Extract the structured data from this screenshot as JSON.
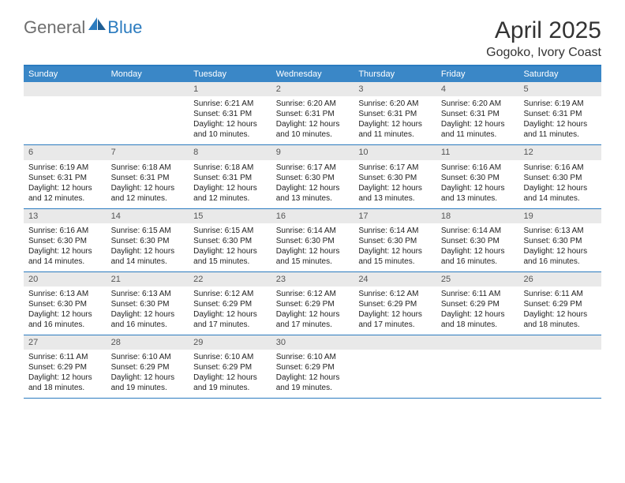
{
  "brand": {
    "general": "General",
    "blue": "Blue"
  },
  "title": {
    "month": "April 2025",
    "location": "Gogoko, Ivory Coast"
  },
  "colors": {
    "accent": "#3a87c7",
    "rule": "#2b7bbf",
    "dayNumBg": "#e9e9e9",
    "headerText": "#ffffff",
    "body": "#222222"
  },
  "dayHeaders": [
    "Sunday",
    "Monday",
    "Tuesday",
    "Wednesday",
    "Thursday",
    "Friday",
    "Saturday"
  ],
  "weeks": [
    [
      {
        "empty": true
      },
      {
        "empty": true
      },
      {
        "num": "1",
        "sunrise": "Sunrise: 6:21 AM",
        "sunset": "Sunset: 6:31 PM",
        "daylight": "Daylight: 12 hours and 10 minutes."
      },
      {
        "num": "2",
        "sunrise": "Sunrise: 6:20 AM",
        "sunset": "Sunset: 6:31 PM",
        "daylight": "Daylight: 12 hours and 10 minutes."
      },
      {
        "num": "3",
        "sunrise": "Sunrise: 6:20 AM",
        "sunset": "Sunset: 6:31 PM",
        "daylight": "Daylight: 12 hours and 11 minutes."
      },
      {
        "num": "4",
        "sunrise": "Sunrise: 6:20 AM",
        "sunset": "Sunset: 6:31 PM",
        "daylight": "Daylight: 12 hours and 11 minutes."
      },
      {
        "num": "5",
        "sunrise": "Sunrise: 6:19 AM",
        "sunset": "Sunset: 6:31 PM",
        "daylight": "Daylight: 12 hours and 11 minutes."
      }
    ],
    [
      {
        "num": "6",
        "sunrise": "Sunrise: 6:19 AM",
        "sunset": "Sunset: 6:31 PM",
        "daylight": "Daylight: 12 hours and 12 minutes."
      },
      {
        "num": "7",
        "sunrise": "Sunrise: 6:18 AM",
        "sunset": "Sunset: 6:31 PM",
        "daylight": "Daylight: 12 hours and 12 minutes."
      },
      {
        "num": "8",
        "sunrise": "Sunrise: 6:18 AM",
        "sunset": "Sunset: 6:31 PM",
        "daylight": "Daylight: 12 hours and 12 minutes."
      },
      {
        "num": "9",
        "sunrise": "Sunrise: 6:17 AM",
        "sunset": "Sunset: 6:30 PM",
        "daylight": "Daylight: 12 hours and 13 minutes."
      },
      {
        "num": "10",
        "sunrise": "Sunrise: 6:17 AM",
        "sunset": "Sunset: 6:30 PM",
        "daylight": "Daylight: 12 hours and 13 minutes."
      },
      {
        "num": "11",
        "sunrise": "Sunrise: 6:16 AM",
        "sunset": "Sunset: 6:30 PM",
        "daylight": "Daylight: 12 hours and 13 minutes."
      },
      {
        "num": "12",
        "sunrise": "Sunrise: 6:16 AM",
        "sunset": "Sunset: 6:30 PM",
        "daylight": "Daylight: 12 hours and 14 minutes."
      }
    ],
    [
      {
        "num": "13",
        "sunrise": "Sunrise: 6:16 AM",
        "sunset": "Sunset: 6:30 PM",
        "daylight": "Daylight: 12 hours and 14 minutes."
      },
      {
        "num": "14",
        "sunrise": "Sunrise: 6:15 AM",
        "sunset": "Sunset: 6:30 PM",
        "daylight": "Daylight: 12 hours and 14 minutes."
      },
      {
        "num": "15",
        "sunrise": "Sunrise: 6:15 AM",
        "sunset": "Sunset: 6:30 PM",
        "daylight": "Daylight: 12 hours and 15 minutes."
      },
      {
        "num": "16",
        "sunrise": "Sunrise: 6:14 AM",
        "sunset": "Sunset: 6:30 PM",
        "daylight": "Daylight: 12 hours and 15 minutes."
      },
      {
        "num": "17",
        "sunrise": "Sunrise: 6:14 AM",
        "sunset": "Sunset: 6:30 PM",
        "daylight": "Daylight: 12 hours and 15 minutes."
      },
      {
        "num": "18",
        "sunrise": "Sunrise: 6:14 AM",
        "sunset": "Sunset: 6:30 PM",
        "daylight": "Daylight: 12 hours and 16 minutes."
      },
      {
        "num": "19",
        "sunrise": "Sunrise: 6:13 AM",
        "sunset": "Sunset: 6:30 PM",
        "daylight": "Daylight: 12 hours and 16 minutes."
      }
    ],
    [
      {
        "num": "20",
        "sunrise": "Sunrise: 6:13 AM",
        "sunset": "Sunset: 6:30 PM",
        "daylight": "Daylight: 12 hours and 16 minutes."
      },
      {
        "num": "21",
        "sunrise": "Sunrise: 6:13 AM",
        "sunset": "Sunset: 6:30 PM",
        "daylight": "Daylight: 12 hours and 16 minutes."
      },
      {
        "num": "22",
        "sunrise": "Sunrise: 6:12 AM",
        "sunset": "Sunset: 6:29 PM",
        "daylight": "Daylight: 12 hours and 17 minutes."
      },
      {
        "num": "23",
        "sunrise": "Sunrise: 6:12 AM",
        "sunset": "Sunset: 6:29 PM",
        "daylight": "Daylight: 12 hours and 17 minutes."
      },
      {
        "num": "24",
        "sunrise": "Sunrise: 6:12 AM",
        "sunset": "Sunset: 6:29 PM",
        "daylight": "Daylight: 12 hours and 17 minutes."
      },
      {
        "num": "25",
        "sunrise": "Sunrise: 6:11 AM",
        "sunset": "Sunset: 6:29 PM",
        "daylight": "Daylight: 12 hours and 18 minutes."
      },
      {
        "num": "26",
        "sunrise": "Sunrise: 6:11 AM",
        "sunset": "Sunset: 6:29 PM",
        "daylight": "Daylight: 12 hours and 18 minutes."
      }
    ],
    [
      {
        "num": "27",
        "sunrise": "Sunrise: 6:11 AM",
        "sunset": "Sunset: 6:29 PM",
        "daylight": "Daylight: 12 hours and 18 minutes."
      },
      {
        "num": "28",
        "sunrise": "Sunrise: 6:10 AM",
        "sunset": "Sunset: 6:29 PM",
        "daylight": "Daylight: 12 hours and 19 minutes."
      },
      {
        "num": "29",
        "sunrise": "Sunrise: 6:10 AM",
        "sunset": "Sunset: 6:29 PM",
        "daylight": "Daylight: 12 hours and 19 minutes."
      },
      {
        "num": "30",
        "sunrise": "Sunrise: 6:10 AM",
        "sunset": "Sunset: 6:29 PM",
        "daylight": "Daylight: 12 hours and 19 minutes."
      },
      {
        "empty": true
      },
      {
        "empty": true
      },
      {
        "empty": true
      }
    ]
  ]
}
